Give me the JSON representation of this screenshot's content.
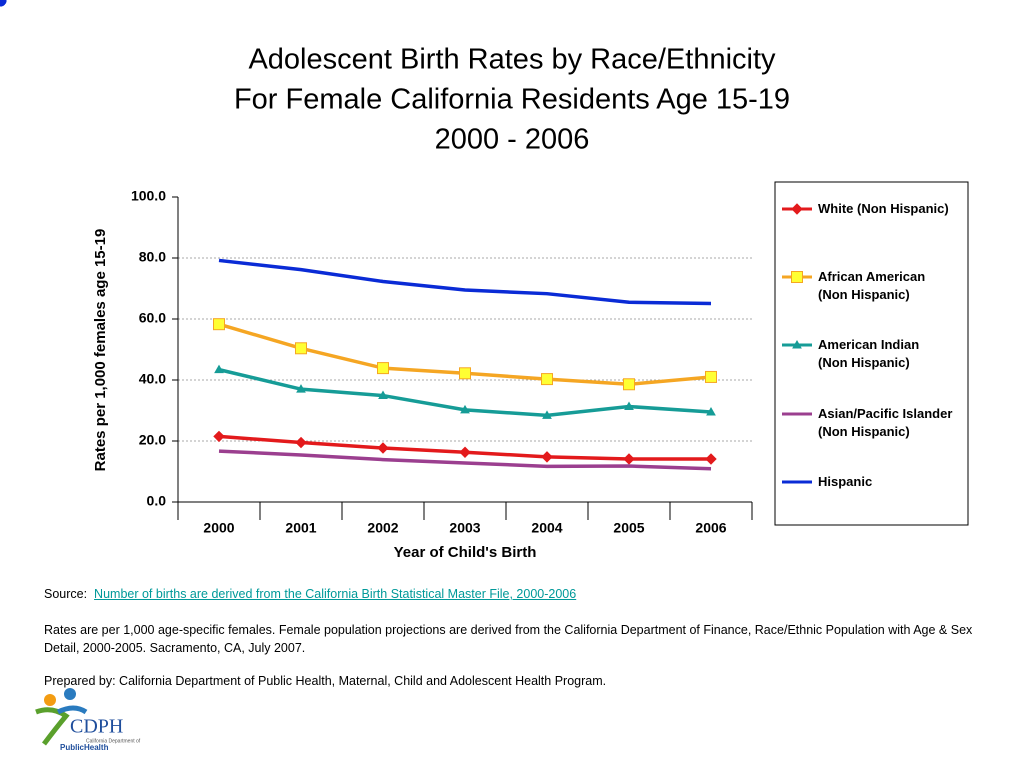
{
  "chart_data": {
    "type": "line",
    "title": [
      "Adolescent Birth Rates by Race/Ethnicity",
      "For Female California Residents Age 15-19",
      "2000 - 2006"
    ],
    "x_label": "Year of Child's Birth",
    "y_label": "Rates per 1,000 females age 15-19",
    "categories": [
      "2000",
      "2001",
      "2002",
      "2003",
      "2004",
      "2005",
      "2006"
    ],
    "ylim": [
      0,
      100
    ],
    "yticks": [
      {
        "value": 0,
        "label": "0.0"
      },
      {
        "value": 20,
        "label": "20.0"
      },
      {
        "value": 40,
        "label": "40.0"
      },
      {
        "value": 60,
        "label": "60.0"
      },
      {
        "value": 80,
        "label": "80.0"
      },
      {
        "value": 100,
        "label": "100.0"
      }
    ],
    "grid": true,
    "legend": "right",
    "series": [
      {
        "name": "White (Non Hispanic)",
        "color": "#e31a1c",
        "marker": "diamond",
        "values": [
          21.5,
          19.5,
          17.7,
          16.3,
          14.8,
          14.1,
          14.1
        ]
      },
      {
        "name": "African American\n(Non Hispanic)",
        "color": "#f5a623",
        "marker_fill": "#ffff33",
        "marker": "square",
        "values": [
          58.3,
          50.4,
          43.9,
          42.2,
          40.3,
          38.6,
          41.0
        ]
      },
      {
        "name": "American Indian\n(Non Hispanic)",
        "color": "#169c97",
        "marker": "triangle",
        "values": [
          43.4,
          37.0,
          34.9,
          30.2,
          28.4,
          31.3,
          29.5
        ]
      },
      {
        "name": "Asian/Pacific Islander\n(Non Hispanic)",
        "color": "#9b3f8f",
        "marker_fill": "#cc99ee",
        "marker": "circle",
        "values": [
          16.7,
          15.4,
          13.9,
          12.8,
          11.7,
          11.8,
          10.9
        ]
      },
      {
        "name": "Hispanic",
        "color": "#0a2bd6",
        "marker": "circle",
        "values": [
          79.2,
          76.2,
          72.3,
          69.5,
          68.3,
          65.5,
          65.1
        ]
      }
    ]
  },
  "notes": {
    "source_label": "Source:",
    "source_link": "Number of births are derived from the California Birth Statistical Master File, 2000-2006",
    "rates": "Rates are per 1,000 age-specific females.  Female population projections are derived from the California Department of Finance, Race/Ethnic Population with Age & Sex Detail, 2000-2005.  Sacramento, CA, July 2007.",
    "prepared": "Prepared by:  California Department of Public Health, Maternal, Child and Adolescent Health Program."
  },
  "logo": {
    "name": "CDPH",
    "sub": "California Department of",
    "brand": "PublicHealth"
  }
}
